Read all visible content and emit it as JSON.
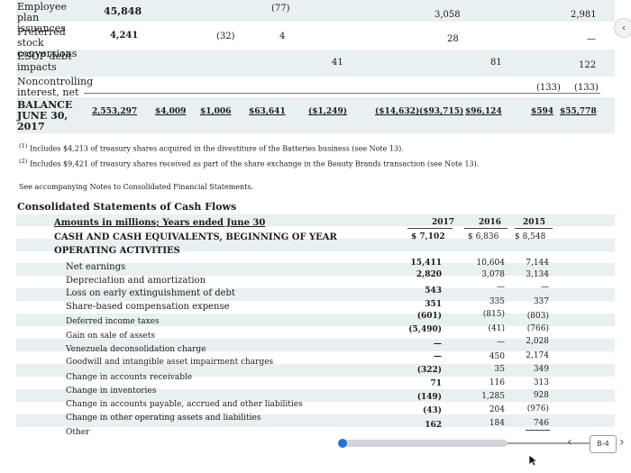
{
  "equity": {
    "rows": [
      {
        "label": "Employee plan issuances",
        "vals": [
          "45,848",
          "(77)",
          "3,058",
          "2,981"
        ]
      },
      {
        "label": "Preferred stock conversions",
        "vals": [
          "4,241",
          "(32)",
          "4",
          "28",
          "—"
        ]
      },
      {
        "label": "ESOP debt impacts",
        "vals": [
          "41",
          "81",
          "122"
        ]
      },
      {
        "label": "Noncontrolling interest, net",
        "vals": [
          "(133)",
          "(133)"
        ]
      }
    ],
    "balance": {
      "label": "BALANCE JUNE 30, 2017",
      "vals": [
        "2,553,297",
        "$4,009",
        "$1,006",
        "$63,641",
        "($1,249)",
        "($14,632)",
        "($93,715)",
        "$96,124",
        "$594",
        "$55,778"
      ]
    }
  },
  "footnotes": [
    {
      "mark": "(1)",
      "text": "Includes $4,213 of treasury shares acquired in the divestiture of the Batteries business (see Note 13)."
    },
    {
      "mark": "(2)",
      "text": "Includes $9,421 of treasury shares received as part of the share exchange in the Beauty Brands transaction (see Note 13)."
    }
  ],
  "see_notes": "See accompanying Notes to Consolidated Financial Statements.",
  "cash_flows": {
    "title": "Consolidated Statements of Cash Flows",
    "header_label": "Amounts in millions; Years ended June 30",
    "years": [
      "2017",
      "2016",
      "2015"
    ],
    "begin": {
      "label": "CASH AND CASH EQUIVALENTS, BEGINNING OF YEAR",
      "vals": [
        "$  7,102",
        "$  6,836",
        "$  8,548"
      ]
    },
    "section": "OPERATING ACTIVITIES",
    "rows": [
      {
        "label": "Net earnings",
        "vals": [
          "15,411",
          "10,604",
          "7,144"
        ]
      },
      {
        "label": "Depreciation and amortization",
        "vals": [
          "2,820",
          "3,078",
          "3,134"
        ]
      },
      {
        "label": "Loss on early extinguishment of debt",
        "vals": [
          "543",
          "—",
          "—"
        ]
      },
      {
        "label": "Share-based compensation expense",
        "vals": [
          "351",
          "335",
          "337"
        ]
      },
      {
        "label": "Deferred income taxes",
        "vals": [
          "(601)",
          "(815)",
          "(803)"
        ]
      },
      {
        "label": "Gain on sale of assets",
        "vals": [
          "(5,490)",
          "(41)",
          "(766)"
        ]
      },
      {
        "label": "Venezuela deconsolidation charge",
        "vals": [
          "—",
          "—",
          "2,028"
        ]
      },
      {
        "label": "Goodwill and intangible asset impairment charges",
        "vals": [
          "—",
          "450",
          "2,174"
        ]
      },
      {
        "label": "Change in accounts receivable",
        "vals": [
          "(322)",
          "35",
          "349"
        ]
      },
      {
        "label": "Change in inventories",
        "vals": [
          "71",
          "116",
          "313"
        ]
      },
      {
        "label": "Change in accounts payable, accrued and other liabilities",
        "vals": [
          "(149)",
          "1,285",
          "928"
        ]
      },
      {
        "label": "Change in other operating assets and liabilities",
        "vals": [
          "(43)",
          "204",
          "(976)"
        ]
      },
      {
        "label": "Other",
        "vals": [
          "162",
          "184",
          "746"
        ]
      }
    ]
  },
  "viewer": {
    "page": "B-4",
    "prev": "‹",
    "next": "›",
    "collapse": "‹"
  }
}
